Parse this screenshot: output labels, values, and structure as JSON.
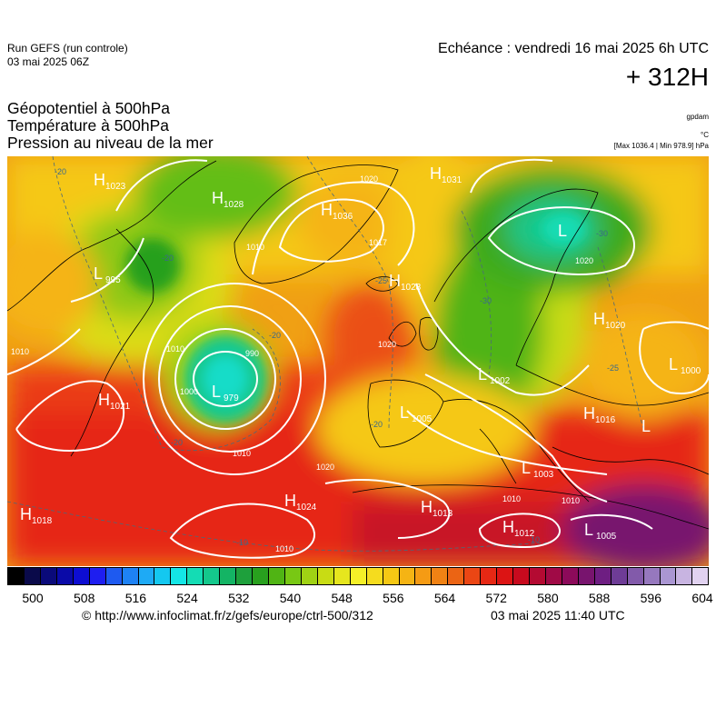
{
  "header": {
    "run_title": "Run GEFS (run controle)",
    "run_date": "03 mai 2025 06Z",
    "valid_time": "Echéance : vendredi 16 mai 2025 6h UTC",
    "lead_time": "+ 312H"
  },
  "parameters": [
    "Géopotentiel à 500hPa",
    "Température à 500hPa",
    "Pression au niveau de la mer"
  ],
  "units": {
    "geopotential": "gpdam",
    "temperature": "°C",
    "range": "[Max 1036.4 | Min 978.9] hPa"
  },
  "pressure_centers": [
    {
      "type": "H",
      "value": "1023"
    },
    {
      "type": "H",
      "value": "1028"
    },
    {
      "type": "H",
      "value": "1036"
    },
    {
      "type": "H",
      "value": "1031"
    },
    {
      "type": "H",
      "value": "1028"
    },
    {
      "type": "L",
      "value": "995"
    },
    {
      "type": "L",
      "value": "979"
    },
    {
      "type": "H",
      "value": "1021"
    },
    {
      "type": "H",
      "value": "1018"
    },
    {
      "type": "H",
      "value": "1024"
    },
    {
      "type": "L",
      "value": "1005"
    },
    {
      "type": "L",
      "value": "1002"
    },
    {
      "type": "H",
      "value": "1013"
    },
    {
      "type": "L",
      "value": "1003"
    },
    {
      "type": "H",
      "value": "1012"
    },
    {
      "type": "L",
      "value": "1005"
    },
    {
      "type": "H",
      "value": "1020"
    },
    {
      "type": "L",
      "value": "1000"
    },
    {
      "type": "L",
      "value": ""
    },
    {
      "type": "H",
      "value": "1016"
    },
    {
      "type": "L",
      "value": ""
    }
  ],
  "isobar_labels": [
    "1017",
    "990",
    "1000",
    "1010",
    "1010",
    "1020",
    "1020",
    "1010",
    "1010",
    "1010",
    "1020",
    "1020",
    "1010",
    "1010"
  ],
  "temp_labels": [
    "-20",
    "-20",
    "-20",
    "-25",
    "-20",
    "-30",
    "-30",
    "-20",
    "-10",
    "-10",
    "-25"
  ],
  "colorbar": {
    "colors": [
      "#000000",
      "#0a0a4a",
      "#0a0a7a",
      "#0a0aa8",
      "#0d0dd2",
      "#1e1ef0",
      "#1e5af0",
      "#1e82f5",
      "#1eaaf5",
      "#14c8f0",
      "#14e6e6",
      "#14dcb4",
      "#14c88c",
      "#14b464",
      "#1ea03c",
      "#28a01e",
      "#50b414",
      "#78c814",
      "#a0d214",
      "#c8dc14",
      "#e6e61e",
      "#f5f028",
      "#f5dc1e",
      "#f5c814",
      "#f5b414",
      "#f59b14",
      "#f08214",
      "#eb6414",
      "#eb4614",
      "#e62814",
      "#dc1414",
      "#c80a1e",
      "#b40a32",
      "#a00a46",
      "#8c0a5a",
      "#78146e",
      "#6e1e82",
      "#6e3c96",
      "#825aaa",
      "#9678be",
      "#aa96d2",
      "#c8b4e1",
      "#e1d2f0"
    ],
    "tick_labels": [
      "500",
      "508",
      "516",
      "524",
      "532",
      "540",
      "548",
      "556",
      "564",
      "572",
      "580",
      "588",
      "596",
      "604"
    ]
  },
  "footer": {
    "source": "© http://www.infoclimat.fr/z/gefs/europe/ctrl-500/312",
    "generated": "03 mai 2025 11:40 UTC"
  }
}
